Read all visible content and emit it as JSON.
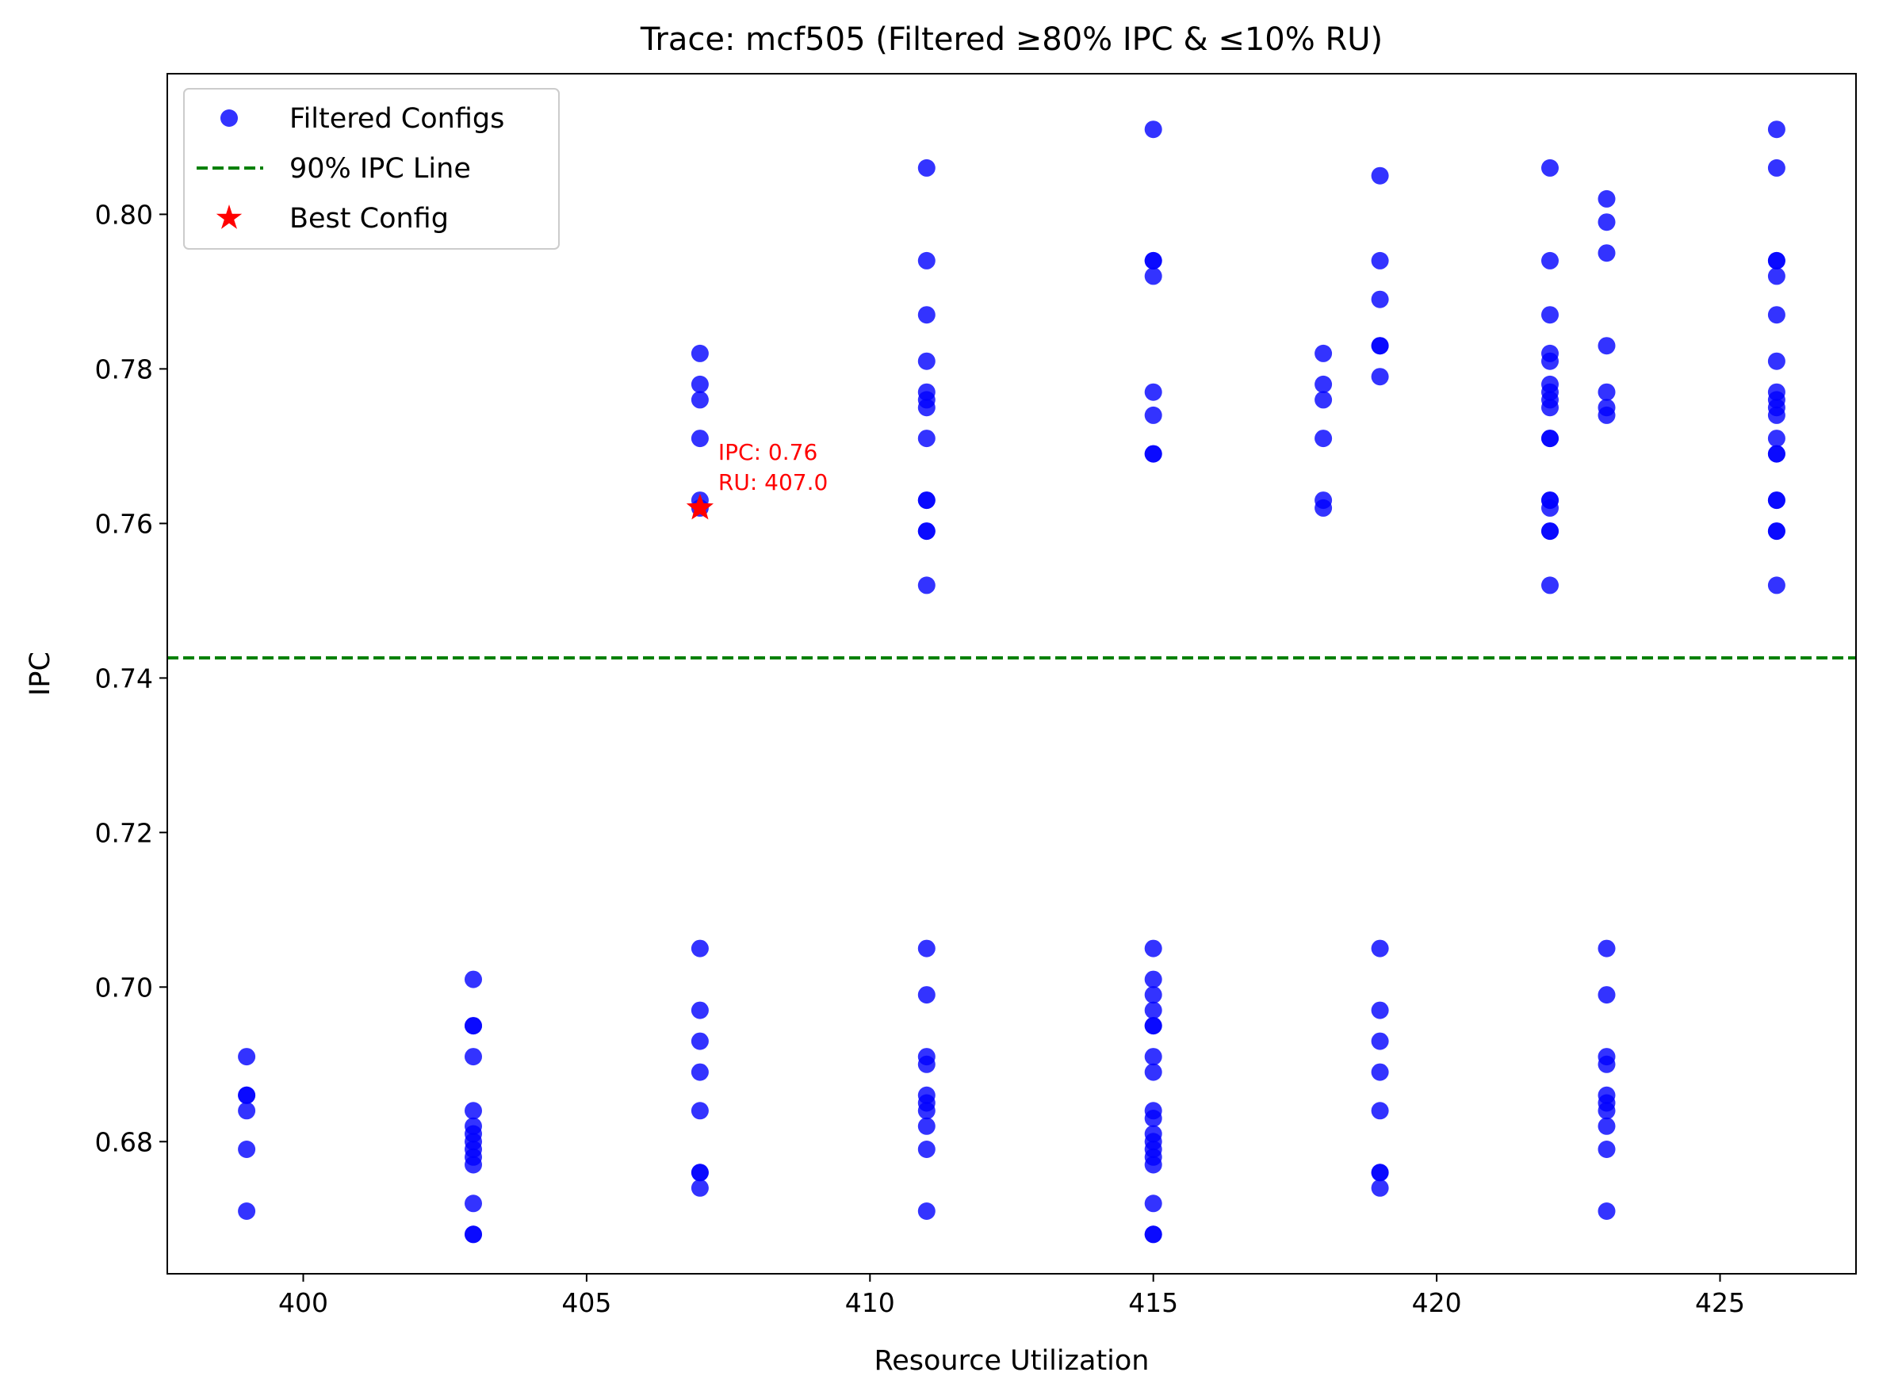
{
  "chart_data": {
    "type": "scatter",
    "title": "Trace: mcf505 (Filtered ≥80% IPC & ≤10% RU)",
    "xlabel": "Resource Utilization",
    "ylabel": "IPC",
    "xlim": [
      397.6,
      427.4
    ],
    "ylim": [
      0.6629,
      0.8182
    ],
    "xticks": [
      400,
      405,
      410,
      415,
      420,
      425
    ],
    "xtick_labels": [
      "400",
      "405",
      "410",
      "415",
      "420",
      "425"
    ],
    "yticks": [
      0.68,
      0.7,
      0.72,
      0.74,
      0.76,
      0.78,
      0.8
    ],
    "ytick_labels": [
      "0.68",
      "0.70",
      "0.72",
      "0.74",
      "0.76",
      "0.78",
      "0.80"
    ],
    "grid": false,
    "legend_position": "upper-left",
    "colors": {
      "points": "#0000ff",
      "reference_line": "#008000",
      "best": "#ff0000"
    },
    "series": [
      {
        "name": "Filtered Configs",
        "points": [
          {
            "x": 399,
            "y": 0.691
          },
          {
            "x": 399,
            "y": 0.686
          },
          {
            "x": 399,
            "y": 0.686
          },
          {
            "x": 399,
            "y": 0.684
          },
          {
            "x": 399,
            "y": 0.679
          },
          {
            "x": 399,
            "y": 0.671
          },
          {
            "x": 403,
            "y": 0.701
          },
          {
            "x": 403,
            "y": 0.695
          },
          {
            "x": 403,
            "y": 0.695
          },
          {
            "x": 403,
            "y": 0.691
          },
          {
            "x": 403,
            "y": 0.684
          },
          {
            "x": 403,
            "y": 0.682
          },
          {
            "x": 403,
            "y": 0.681
          },
          {
            "x": 403,
            "y": 0.68
          },
          {
            "x": 403,
            "y": 0.679
          },
          {
            "x": 403,
            "y": 0.678
          },
          {
            "x": 403,
            "y": 0.677
          },
          {
            "x": 403,
            "y": 0.672
          },
          {
            "x": 403,
            "y": 0.668
          },
          {
            "x": 403,
            "y": 0.668
          },
          {
            "x": 407,
            "y": 0.782
          },
          {
            "x": 407,
            "y": 0.778
          },
          {
            "x": 407,
            "y": 0.776
          },
          {
            "x": 407,
            "y": 0.771
          },
          {
            "x": 407,
            "y": 0.763
          },
          {
            "x": 407,
            "y": 0.762
          },
          {
            "x": 407,
            "y": 0.705
          },
          {
            "x": 407,
            "y": 0.697
          },
          {
            "x": 407,
            "y": 0.693
          },
          {
            "x": 407,
            "y": 0.689
          },
          {
            "x": 407,
            "y": 0.684
          },
          {
            "x": 407,
            "y": 0.676
          },
          {
            "x": 407,
            "y": 0.676
          },
          {
            "x": 407,
            "y": 0.674
          },
          {
            "x": 411,
            "y": 0.806
          },
          {
            "x": 411,
            "y": 0.794
          },
          {
            "x": 411,
            "y": 0.787
          },
          {
            "x": 411,
            "y": 0.781
          },
          {
            "x": 411,
            "y": 0.777
          },
          {
            "x": 411,
            "y": 0.776
          },
          {
            "x": 411,
            "y": 0.775
          },
          {
            "x": 411,
            "y": 0.771
          },
          {
            "x": 411,
            "y": 0.763
          },
          {
            "x": 411,
            "y": 0.763
          },
          {
            "x": 411,
            "y": 0.759
          },
          {
            "x": 411,
            "y": 0.759
          },
          {
            "x": 411,
            "y": 0.752
          },
          {
            "x": 411,
            "y": 0.705
          },
          {
            "x": 411,
            "y": 0.699
          },
          {
            "x": 411,
            "y": 0.691
          },
          {
            "x": 411,
            "y": 0.69
          },
          {
            "x": 411,
            "y": 0.686
          },
          {
            "x": 411,
            "y": 0.685
          },
          {
            "x": 411,
            "y": 0.684
          },
          {
            "x": 411,
            "y": 0.682
          },
          {
            "x": 411,
            "y": 0.679
          },
          {
            "x": 411,
            "y": 0.671
          },
          {
            "x": 415,
            "y": 0.811
          },
          {
            "x": 415,
            "y": 0.794
          },
          {
            "x": 415,
            "y": 0.794
          },
          {
            "x": 415,
            "y": 0.792
          },
          {
            "x": 415,
            "y": 0.777
          },
          {
            "x": 415,
            "y": 0.774
          },
          {
            "x": 415,
            "y": 0.769
          },
          {
            "x": 415,
            "y": 0.769
          },
          {
            "x": 415,
            "y": 0.705
          },
          {
            "x": 415,
            "y": 0.701
          },
          {
            "x": 415,
            "y": 0.699
          },
          {
            "x": 415,
            "y": 0.697
          },
          {
            "x": 415,
            "y": 0.695
          },
          {
            "x": 415,
            "y": 0.695
          },
          {
            "x": 415,
            "y": 0.691
          },
          {
            "x": 415,
            "y": 0.689
          },
          {
            "x": 415,
            "y": 0.684
          },
          {
            "x": 415,
            "y": 0.683
          },
          {
            "x": 415,
            "y": 0.681
          },
          {
            "x": 415,
            "y": 0.68
          },
          {
            "x": 415,
            "y": 0.679
          },
          {
            "x": 415,
            "y": 0.678
          },
          {
            "x": 415,
            "y": 0.677
          },
          {
            "x": 415,
            "y": 0.672
          },
          {
            "x": 415,
            "y": 0.668
          },
          {
            "x": 415,
            "y": 0.668
          },
          {
            "x": 418,
            "y": 0.782
          },
          {
            "x": 418,
            "y": 0.778
          },
          {
            "x": 418,
            "y": 0.776
          },
          {
            "x": 418,
            "y": 0.771
          },
          {
            "x": 418,
            "y": 0.763
          },
          {
            "x": 418,
            "y": 0.762
          },
          {
            "x": 419,
            "y": 0.805
          },
          {
            "x": 419,
            "y": 0.794
          },
          {
            "x": 419,
            "y": 0.789
          },
          {
            "x": 419,
            "y": 0.783
          },
          {
            "x": 419,
            "y": 0.783
          },
          {
            "x": 419,
            "y": 0.779
          },
          {
            "x": 419,
            "y": 0.705
          },
          {
            "x": 419,
            "y": 0.697
          },
          {
            "x": 419,
            "y": 0.693
          },
          {
            "x": 419,
            "y": 0.689
          },
          {
            "x": 419,
            "y": 0.684
          },
          {
            "x": 419,
            "y": 0.676
          },
          {
            "x": 419,
            "y": 0.676
          },
          {
            "x": 419,
            "y": 0.674
          },
          {
            "x": 422,
            "y": 0.806
          },
          {
            "x": 422,
            "y": 0.794
          },
          {
            "x": 422,
            "y": 0.787
          },
          {
            "x": 422,
            "y": 0.782
          },
          {
            "x": 422,
            "y": 0.781
          },
          {
            "x": 422,
            "y": 0.778
          },
          {
            "x": 422,
            "y": 0.777
          },
          {
            "x": 422,
            "y": 0.776
          },
          {
            "x": 422,
            "y": 0.775
          },
          {
            "x": 422,
            "y": 0.771
          },
          {
            "x": 422,
            "y": 0.771
          },
          {
            "x": 422,
            "y": 0.763
          },
          {
            "x": 422,
            "y": 0.763
          },
          {
            "x": 422,
            "y": 0.762
          },
          {
            "x": 422,
            "y": 0.759
          },
          {
            "x": 422,
            "y": 0.759
          },
          {
            "x": 422,
            "y": 0.752
          },
          {
            "x": 423,
            "y": 0.802
          },
          {
            "x": 423,
            "y": 0.799
          },
          {
            "x": 423,
            "y": 0.795
          },
          {
            "x": 423,
            "y": 0.783
          },
          {
            "x": 423,
            "y": 0.777
          },
          {
            "x": 423,
            "y": 0.775
          },
          {
            "x": 423,
            "y": 0.774
          },
          {
            "x": 423,
            "y": 0.705
          },
          {
            "x": 423,
            "y": 0.699
          },
          {
            "x": 423,
            "y": 0.691
          },
          {
            "x": 423,
            "y": 0.69
          },
          {
            "x": 423,
            "y": 0.686
          },
          {
            "x": 423,
            "y": 0.685
          },
          {
            "x": 423,
            "y": 0.684
          },
          {
            "x": 423,
            "y": 0.682
          },
          {
            "x": 423,
            "y": 0.679
          },
          {
            "x": 423,
            "y": 0.671
          },
          {
            "x": 426,
            "y": 0.811
          },
          {
            "x": 426,
            "y": 0.806
          },
          {
            "x": 426,
            "y": 0.794
          },
          {
            "x": 426,
            "y": 0.794
          },
          {
            "x": 426,
            "y": 0.792
          },
          {
            "x": 426,
            "y": 0.787
          },
          {
            "x": 426,
            "y": 0.781
          },
          {
            "x": 426,
            "y": 0.777
          },
          {
            "x": 426,
            "y": 0.776
          },
          {
            "x": 426,
            "y": 0.775
          },
          {
            "x": 426,
            "y": 0.774
          },
          {
            "x": 426,
            "y": 0.771
          },
          {
            "x": 426,
            "y": 0.769
          },
          {
            "x": 426,
            "y": 0.769
          },
          {
            "x": 426,
            "y": 0.763
          },
          {
            "x": 426,
            "y": 0.763
          },
          {
            "x": 426,
            "y": 0.759
          },
          {
            "x": 426,
            "y": 0.759
          },
          {
            "x": 426,
            "y": 0.752
          }
        ]
      }
    ],
    "reference_line": {
      "name": "90% IPC Line",
      "y": 0.7426,
      "style": "dashed"
    },
    "best_config": {
      "name": "Best Config",
      "x": 407.0,
      "y": 0.762,
      "annotation": [
        "IPC: 0.76",
        "RU: 407.0"
      ]
    },
    "legend": [
      "Filtered Configs",
      "90% IPC Line",
      "Best Config"
    ]
  }
}
